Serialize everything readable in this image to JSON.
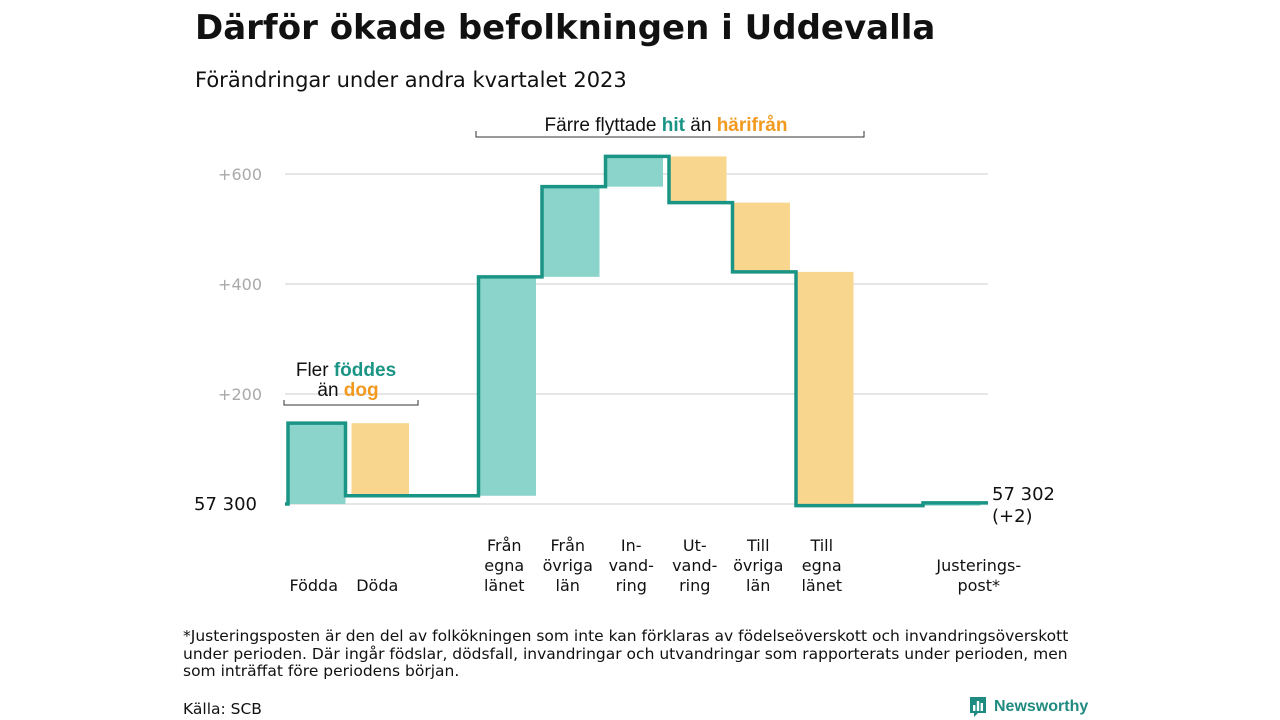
{
  "title": "Därför ökade befolkningen i Uddevalla",
  "subtitle": "Förändringar under andra kvartalet 2023",
  "colors": {
    "increase": "#8ad4cb",
    "decrease": "#f9d68e",
    "line": "#1a9485",
    "hit_text": "#1a9485",
    "harifran_text": "#f19a1f",
    "grid": "#dddddd",
    "tick": "#a9a9a9"
  },
  "annotations": {
    "births": {
      "line1_pre": "Fler ",
      "line1_em": "föddes",
      "line2_pre": "än ",
      "line2_em": "dog"
    },
    "migration": {
      "pre": "Färre flyttade ",
      "em1": "hit",
      "mid": " än ",
      "em2": "härifrån"
    }
  },
  "start_label": "57  300",
  "end_label": {
    "line1": "57 302",
    "line2": "(+2)"
  },
  "chart_data": {
    "type": "waterfall",
    "title": "Därför ökade befolkningen i Uddevalla",
    "subtitle": "Förändringar under andra kvartalet 2023",
    "base": 57300,
    "end_value": 57302,
    "y_ticks": [
      "+200",
      "+400",
      "+600"
    ],
    "y_tick_values": [
      200,
      400,
      600
    ],
    "ylim": [
      0,
      600
    ],
    "grid": true,
    "steps": [
      {
        "label": [
          "Födda"
        ],
        "from": 0,
        "to": 147,
        "kind": "increase"
      },
      {
        "label": [
          "Döda"
        ],
        "from": 147,
        "to": 15,
        "kind": "decrease"
      },
      {
        "label": [
          "Från",
          "egna",
          "länet"
        ],
        "from": 15,
        "to": 413,
        "kind": "increase"
      },
      {
        "label": [
          "Från",
          "övriga",
          "län"
        ],
        "from": 413,
        "to": 577,
        "kind": "increase"
      },
      {
        "label": [
          "In-",
          "vand-",
          "ring"
        ],
        "from": 577,
        "to": 632,
        "kind": "increase"
      },
      {
        "label": [
          "Ut-",
          "vand-",
          "ring"
        ],
        "from": 632,
        "to": 548,
        "kind": "decrease"
      },
      {
        "label": [
          "Till",
          "övriga",
          "län"
        ],
        "from": 548,
        "to": 422,
        "kind": "decrease"
      },
      {
        "label": [
          "Till",
          "egna",
          "länet"
        ],
        "from": 422,
        "to": -3,
        "kind": "decrease"
      },
      {
        "label": [
          "Justerings-",
          "post*"
        ],
        "from": -3,
        "to": 2,
        "kind": "increase"
      }
    ]
  },
  "footnote": "*Justeringsposten är den del av folkökningen som inte kan förklaras av födelseöverskott och invandringsöverskott under perioden. Där ingår födslar, dödsfall, invandringar och utvandringar som rapporterats under perioden, men som inträffat före periodens början.",
  "source": "Källa: SCB",
  "brand": {
    "name": "Newsworthy",
    "icon": "bar-chart-logo-icon"
  }
}
